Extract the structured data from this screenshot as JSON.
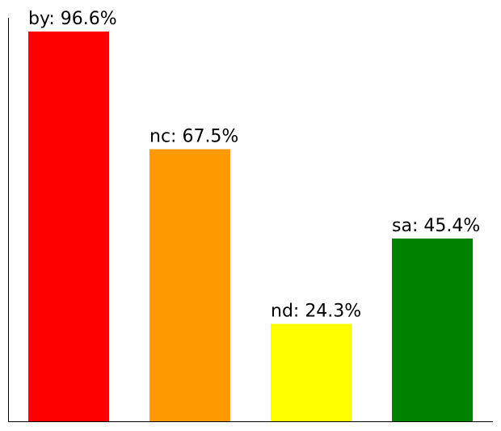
{
  "chart_data": {
    "type": "bar",
    "categories": [
      "by",
      "nc",
      "nd",
      "sa"
    ],
    "values": [
      96.6,
      67.5,
      24.3,
      45.4
    ],
    "labels": [
      "by: 96.6%",
      "nc: 67.5%",
      "nd: 24.3%",
      "sa: 45.4%"
    ],
    "colors": [
      "#ff0000",
      "#ff9900",
      "#ffff00",
      "#008000"
    ],
    "unit": "%",
    "ylim": [
      0,
      100
    ],
    "title": "",
    "xlabel": "",
    "ylabel": "",
    "grid": false,
    "legend": "none"
  }
}
